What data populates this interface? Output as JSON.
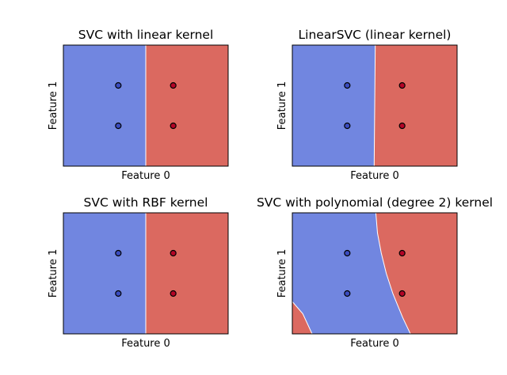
{
  "figure": {
    "background": "#ffffff",
    "colors": {
      "class_0": "#7186e0",
      "class_1": "#db6960",
      "point_edge": "#000000"
    }
  },
  "chart_data": [
    {
      "type": "scatter",
      "title": "SVC with linear kernel",
      "xlabel": "Feature 0",
      "ylabel": "Feature 1",
      "xlim": [
        -1,
        2
      ],
      "ylim": [
        -1,
        2
      ],
      "xticks": [],
      "yticks": [],
      "points": [
        {
          "x": 0,
          "y": 0,
          "class": 0
        },
        {
          "x": 0,
          "y": 1,
          "class": 0
        },
        {
          "x": 1,
          "y": 0,
          "class": 1
        },
        {
          "x": 1,
          "y": 1,
          "class": 1
        }
      ],
      "decision_regions": {
        "boundary": "vertical",
        "x_at_bottom": 0.5,
        "x_at_top": 0.5
      }
    },
    {
      "type": "scatter",
      "title": "LinearSVC (linear kernel)",
      "xlabel": "Feature 0",
      "ylabel": "Feature 1",
      "xlim": [
        -1,
        2
      ],
      "ylim": [
        -1,
        2
      ],
      "xticks": [],
      "yticks": [],
      "points": [
        {
          "x": 0,
          "y": 0,
          "class": 0
        },
        {
          "x": 0,
          "y": 1,
          "class": 0
        },
        {
          "x": 1,
          "y": 0,
          "class": 1
        },
        {
          "x": 1,
          "y": 1,
          "class": 1
        }
      ],
      "decision_regions": {
        "boundary": "near-vertical",
        "x_at_bottom": 0.49,
        "x_at_top": 0.51
      }
    },
    {
      "type": "scatter",
      "title": "SVC with RBF kernel",
      "xlabel": "Feature 0",
      "ylabel": "Feature 1",
      "xlim": [
        -1,
        2
      ],
      "ylim": [
        -1,
        2
      ],
      "xticks": [],
      "yticks": [],
      "points": [
        {
          "x": 0,
          "y": 0,
          "class": 0
        },
        {
          "x": 0,
          "y": 1,
          "class": 0
        },
        {
          "x": 1,
          "y": 0,
          "class": 1
        },
        {
          "x": 1,
          "y": 1,
          "class": 1
        }
      ],
      "decision_regions": {
        "boundary": "vertical",
        "x_at_bottom": 0.5,
        "x_at_top": 0.5
      }
    },
    {
      "type": "scatter",
      "title": "SVC with polynomial (degree 2) kernel",
      "xlabel": "Feature 0",
      "ylabel": "Feature 1",
      "xlim": [
        -1,
        2
      ],
      "ylim": [
        -1,
        2
      ],
      "xticks": [],
      "yticks": [],
      "points": [
        {
          "x": 0,
          "y": 0,
          "class": 0
        },
        {
          "x": 0,
          "y": 1,
          "class": 0
        },
        {
          "x": 1,
          "y": 0,
          "class": 1
        },
        {
          "x": 1,
          "y": 1,
          "class": 1
        }
      ],
      "decision_regions": {
        "boundary": "curved",
        "right_boundary": [
          [
            0.52,
            2.0
          ],
          [
            0.55,
            1.5
          ],
          [
            0.62,
            1.0
          ],
          [
            0.71,
            0.5
          ],
          [
            0.83,
            0.0
          ],
          [
            1.01,
            -0.6
          ],
          [
            1.15,
            -1.0
          ]
        ],
        "left_boundary": [
          [
            -1.0,
            -0.2
          ],
          [
            -0.81,
            -0.5
          ],
          [
            -0.64,
            -1.0
          ]
        ]
      }
    }
  ]
}
